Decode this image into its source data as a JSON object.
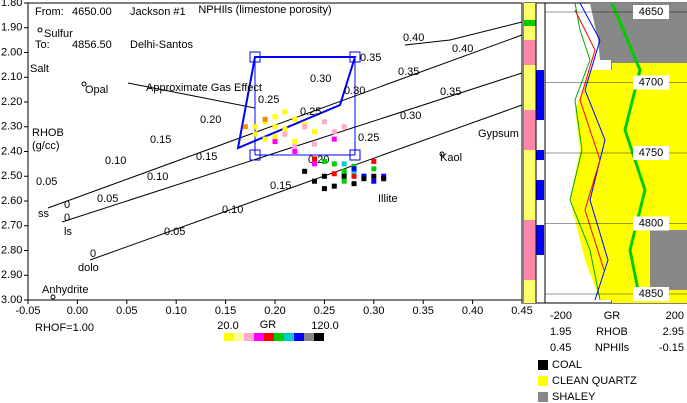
{
  "header": {
    "from_label": "From:",
    "from_value": "4650.00",
    "well": "Jackson #1",
    "to_label": "To:",
    "to_value": "4856.50",
    "field": "Delhi-Santos"
  },
  "chart_data": {
    "type": "scatter",
    "title": "NPHIls (limestone porosity)",
    "y_label": [
      "RHOB",
      "(g/cc)"
    ],
    "xlim": [
      -0.05,
      0.45
    ],
    "ylim": [
      3.0,
      1.8
    ],
    "xticks": [
      -0.05,
      {
        "value": 0,
        "label": "0.00"
      },
      0.05,
      {
        "value": 0.1,
        "label": "0.10"
      },
      0.15,
      {
        "value": 0.2,
        "label": "0.20"
      },
      0.25,
      {
        "value": 0.3,
        "label": "0.30"
      },
      0.35,
      {
        "value": 0.4,
        "label": "0.40"
      },
      0.45
    ],
    "yticks": [
      {
        "value": 1.8,
        "label": "1.80"
      },
      {
        "value": 1.9,
        "label": "1.90"
      },
      {
        "value": 2.0,
        "label": "2.00"
      },
      {
        "value": 2.1,
        "label": "2.10"
      },
      {
        "value": 2.2,
        "label": "2.20"
      },
      {
        "value": 2.3,
        "label": "2.30"
      },
      {
        "value": 2.4,
        "label": "2.40"
      },
      {
        "value": 2.5,
        "label": "2.50"
      },
      {
        "value": 2.6,
        "label": "2.60"
      },
      {
        "value": 2.7,
        "label": "2.70"
      },
      {
        "value": 2.8,
        "label": "2.80"
      },
      {
        "value": 2.9,
        "label": "2.90"
      },
      {
        "value": 3.0,
        "label": "3.00"
      }
    ],
    "series": [
      {
        "color": "#ffff00",
        "x": [
          0.18,
          0.19,
          0.2,
          0.21,
          0.22,
          0.2,
          0.23,
          0.19,
          0.21,
          0.24,
          0.18,
          0.2,
          0.22
        ],
        "values": [
          2.3,
          2.28,
          2.26,
          2.31,
          2.27,
          2.34,
          2.29,
          2.35,
          2.24,
          2.32,
          2.33,
          2.3,
          2.36
        ]
      },
      {
        "color": "#ffaacc",
        "x": [
          0.21,
          0.23,
          0.25,
          0.26,
          0.24,
          0.22,
          0.27
        ],
        "values": [
          2.33,
          2.3,
          2.28,
          2.32,
          2.37,
          2.38,
          2.3
        ]
      },
      {
        "color": "#ff00ff",
        "x": [
          0.2,
          0.22,
          0.26,
          0.24
        ],
        "values": [
          2.36,
          2.4,
          2.35,
          2.45
        ]
      },
      {
        "color": "#ff8800",
        "x": [
          0.19,
          0.17
        ],
        "values": [
          2.27,
          2.3
        ]
      },
      {
        "color": "#00cc00",
        "x": [
          0.26,
          0.27,
          0.28,
          0.29,
          0.25,
          0.3,
          0.27
        ],
        "values": [
          2.45,
          2.48,
          2.46,
          2.5,
          2.44,
          2.47,
          2.52
        ]
      },
      {
        "color": "#ff0000",
        "x": [
          0.24,
          0.28,
          0.26,
          0.3
        ],
        "values": [
          2.43,
          2.5,
          2.49,
          2.44
        ]
      },
      {
        "color": "#00cccc",
        "x": [
          0.27,
          0.28
        ],
        "values": [
          2.45,
          2.48
        ]
      },
      {
        "color": "#0000ff",
        "x": [
          0.28,
          0.29,
          0.3,
          0.31
        ],
        "values": [
          2.47,
          2.5,
          2.52,
          2.5
        ]
      },
      {
        "color": "#000000",
        "x": [
          0.24,
          0.25,
          0.26,
          0.27,
          0.28,
          0.29,
          0.3,
          0.31,
          0.23,
          0.25
        ],
        "values": [
          2.52,
          2.55,
          2.54,
          2.5,
          2.53,
          2.51,
          2.5,
          2.51,
          2.48,
          2.5
        ]
      }
    ],
    "annotations": [
      "Sulfur",
      "Salt",
      "Opal",
      "Approximate Gas Effect",
      "Gypsum",
      "Kaol",
      "Illite",
      "ss",
      "ls",
      "dolo",
      "Anhydrite",
      "0.40",
      "0.40",
      "0.35",
      "0.35",
      "0.35",
      "0.30",
      "0.30",
      "0.30",
      "0.25",
      "0.25",
      "0.25",
      "0.20",
      "0.20",
      "0.15",
      "0.15",
      "0.15",
      "0.10",
      "0.10",
      "0.10",
      "0.05",
      "0.05",
      "0.05",
      "0",
      "0",
      "0"
    ],
    "rhof": "RHOF=1.00",
    "gr_scale": {
      "label": "GR",
      "min_label": "20.0",
      "max_label": "120.0",
      "colors": [
        "#ffff00",
        "#ffff99",
        "#ffaacc",
        "#ff00ff",
        "#ff0000",
        "#00cc00",
        "#00cccc",
        "#0000ff",
        "#888888",
        "#000000"
      ]
    }
  },
  "log_panel": {
    "depth_ticks": [
      4650,
      4700,
      4750,
      4800,
      4850
    ],
    "scales": [
      [
        "-200",
        "GR",
        "200"
      ],
      [
        "1.95",
        "RHOB",
        "2.95"
      ],
      [
        "0.45",
        "NPHIls",
        "-0.15"
      ]
    ],
    "legend": [
      {
        "name": "COAL",
        "color": "#000000"
      },
      {
        "name": "CLEAN QUARTZ",
        "color": "#ffff00"
      },
      {
        "name": "SHALEY",
        "color": "#888888"
      }
    ]
  }
}
